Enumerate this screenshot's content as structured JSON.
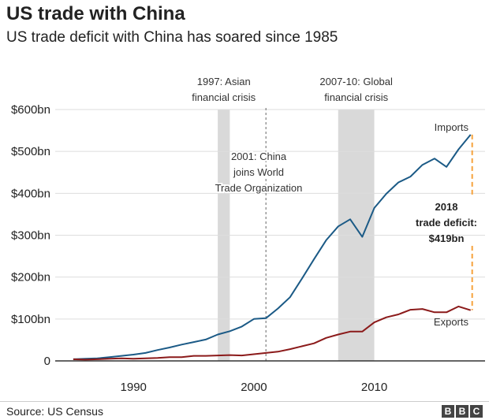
{
  "title": "US trade with China",
  "subtitle": "US trade deficit with China has soared since 1985",
  "source": "Source: US Census",
  "logo": [
    "B",
    "B",
    "C"
  ],
  "colors": {
    "imports": "#1b5a86",
    "exports": "#8b1a1a",
    "shade": "#d9d9d9",
    "deficit": "#f6a23c",
    "grid": "#dddddd"
  },
  "chart_data": {
    "type": "line",
    "xlim": [
      1985,
      2018
    ],
    "ylim": [
      0,
      600
    ],
    "x_ticks": [
      1990,
      2000,
      2010
    ],
    "y_ticks": [
      0,
      100,
      200,
      300,
      400,
      500,
      600
    ],
    "y_tick_labels": [
      "0",
      "$100bn",
      "$200bn",
      "$300bn",
      "$400bn",
      "$500bn",
      "$600bn"
    ],
    "grid": true,
    "x": [
      1985,
      1986,
      1987,
      1988,
      1989,
      1990,
      1991,
      1992,
      1993,
      1994,
      1995,
      1996,
      1997,
      1998,
      1999,
      2000,
      2001,
      2002,
      2003,
      2004,
      2005,
      2006,
      2007,
      2008,
      2009,
      2010,
      2011,
      2012,
      2013,
      2014,
      2015,
      2016,
      2017,
      2018
    ],
    "series": [
      {
        "name": "Imports",
        "values": [
          4,
          5,
          6,
          9,
          12,
          15,
          19,
          26,
          32,
          39,
          45,
          51,
          63,
          71,
          82,
          100,
          102,
          125,
          152,
          197,
          243,
          288,
          321,
          338,
          296,
          365,
          399,
          426,
          440,
          468,
          483,
          463,
          505,
          540
        ]
      },
      {
        "name": "Exports",
        "values": [
          4,
          3,
          4,
          5,
          6,
          5,
          6,
          7,
          9,
          9,
          12,
          12,
          13,
          14,
          13,
          16,
          19,
          22,
          28,
          35,
          42,
          55,
          63,
          70,
          70,
          92,
          104,
          111,
          122,
          124,
          116,
          116,
          130,
          121
        ]
      }
    ],
    "shaded_periods": [
      {
        "from": 1997,
        "to": 1998,
        "label": [
          "1997: Asian",
          "financial crisis"
        ]
      },
      {
        "from": 2007,
        "to": 2010,
        "label": [
          "2007-10: Global",
          "financial crisis"
        ]
      }
    ],
    "event": {
      "x": 2001,
      "label": [
        "2001: China",
        "joins World",
        "Trade Organization"
      ]
    },
    "deficit": {
      "year": 2018,
      "label": [
        "2018",
        "trade deficit:",
        "$419bn"
      ],
      "value": 419
    }
  }
}
